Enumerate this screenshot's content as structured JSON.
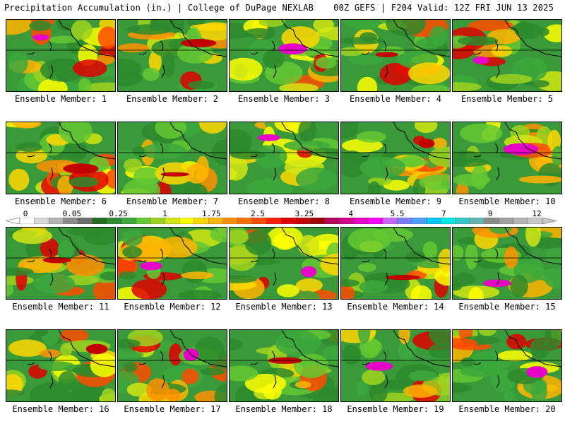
{
  "header": {
    "left_title": "Precipitation Accumulation (in.) | College of DuPage NEXLAB",
    "right_title": "00Z GEFS | F204 Valid: 12Z FRI JUN 13 2025"
  },
  "panels": [
    {
      "label": "Ensemble Member: 1"
    },
    {
      "label": "Ensemble Member: 2"
    },
    {
      "label": "Ensemble Member: 3"
    },
    {
      "label": "Ensemble Member: 4"
    },
    {
      "label": "Ensemble Member: 5"
    },
    {
      "label": "Ensemble Member: 6"
    },
    {
      "label": "Ensemble Member: 7"
    },
    {
      "label": "Ensemble Member: 8"
    },
    {
      "label": "Ensemble Member: 9"
    },
    {
      "label": "Ensemble Member: 10"
    },
    {
      "label": "Ensemble Member: 11"
    },
    {
      "label": "Ensemble Member: 12"
    },
    {
      "label": "Ensemble Member: 13"
    },
    {
      "label": "Ensemble Member: 14"
    },
    {
      "label": "Ensemble Member: 15"
    },
    {
      "label": "Ensemble Member: 16"
    },
    {
      "label": "Ensemble Member: 17"
    },
    {
      "label": "Ensemble Member: 18"
    },
    {
      "label": "Ensemble Member: 19"
    },
    {
      "label": "Ensemble Member: 20"
    }
  ],
  "color_scale": {
    "tick_labels": [
      "0",
      "0.05",
      "0.25",
      "1",
      "1.75",
      "2.5",
      "3.25",
      "4",
      "5.5",
      "7",
      "9",
      "12"
    ],
    "colors": [
      "#ffffff",
      "#d8d8d8",
      "#b4b4b4",
      "#8c8c8c",
      "#6e6e6e",
      "#1e6e1e",
      "#2d8a2d",
      "#3ca83c",
      "#64c832",
      "#9ed21e",
      "#d2e614",
      "#ffff00",
      "#ffd700",
      "#ffb400",
      "#ff9100",
      "#ff6e00",
      "#ff4b00",
      "#ff1e00",
      "#e10000",
      "#c30000",
      "#a00000",
      "#b4005a",
      "#d2008c",
      "#e600c8",
      "#ff00ff",
      "#c864ff",
      "#7d7dff",
      "#4ba0ff",
      "#00c8ff",
      "#00e6e6",
      "#32c8c8",
      "#64b4b4",
      "#8c8c8c",
      "#a0a0a0",
      "#b4b4b4",
      "#c8c8c8"
    ]
  }
}
